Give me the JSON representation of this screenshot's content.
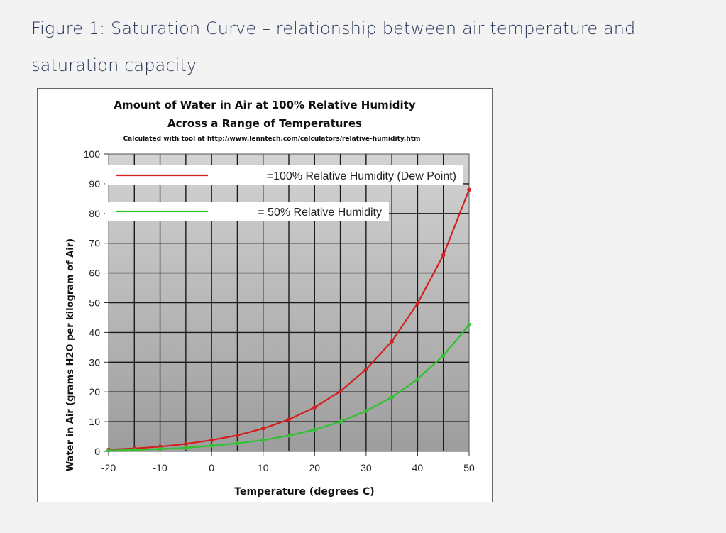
{
  "figure_caption": "Figure 1: Saturation Curve – relationship between air temperature and saturation capacity.",
  "colors": {
    "plot_area_gradient_top": "#d3d3d3",
    "plot_area_gradient_bottom": "#9d9d9d",
    "series_100": "#d21f1f",
    "series_50": "#2ec22e",
    "caption_text": "#2d3a5c"
  },
  "chart_data": {
    "type": "line",
    "title": "Amount of Water in Air at 100% Relative Humidity",
    "subtitle": "Across a Range of Temperatures",
    "note": "Calculated with tool at http://www.lenntech.com/calculators/relative-humidity.htm",
    "xlabel": "Temperature (degrees C)",
    "ylabel": "Water in Air (grams H2O per kilogram of Air)",
    "xlim": [
      -20,
      50
    ],
    "ylim": [
      0,
      100
    ],
    "x_ticks": [
      "-20",
      "-10",
      "0",
      "10",
      "20",
      "30",
      "40",
      "50"
    ],
    "y_ticks": [
      "0",
      "10",
      "20",
      "30",
      "40",
      "50",
      "60",
      "70",
      "80",
      "90",
      "100"
    ],
    "grid": true,
    "legend_position": "top",
    "x": [
      -20,
      -15,
      -10,
      -5,
      0,
      5,
      10,
      15,
      20,
      25,
      30,
      35,
      40,
      45,
      50
    ],
    "series": [
      {
        "name": "=100% Relative Humidity (Dew Point)",
        "color": "#d21f1f",
        "values": [
          0.6,
          1.0,
          1.6,
          2.5,
          3.8,
          5.4,
          7.7,
          10.7,
          14.8,
          20.2,
          27.6,
          37.0,
          49.8,
          66.0,
          88.0
        ]
      },
      {
        "name": "= 50% Relative Humidity",
        "color": "#2ec22e",
        "values": [
          0.3,
          0.5,
          0.8,
          1.2,
          1.9,
          2.7,
          3.8,
          5.3,
          7.3,
          10.0,
          13.6,
          18.2,
          24.3,
          32.2,
          42.6
        ]
      }
    ]
  }
}
